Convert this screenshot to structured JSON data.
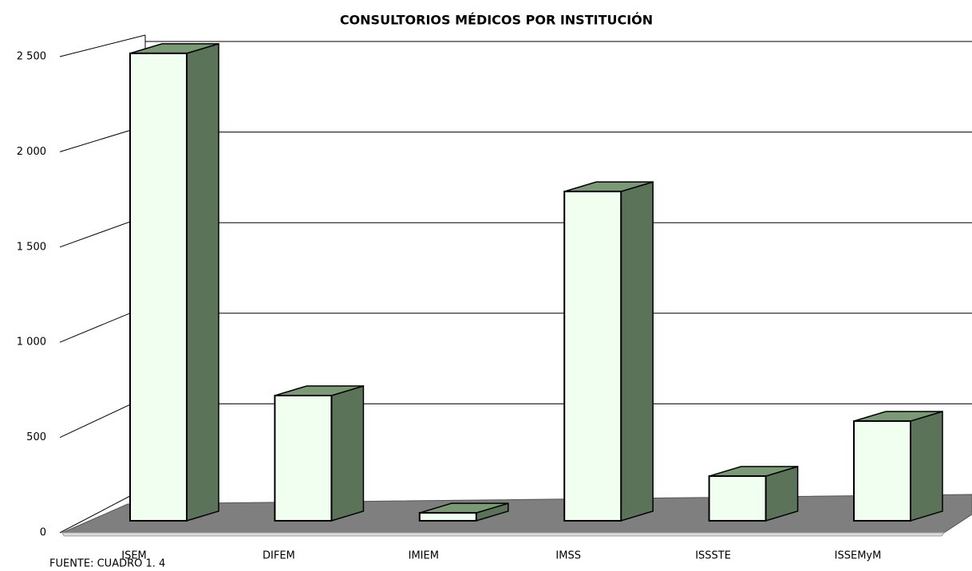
{
  "chart_data": {
    "type": "bar3d",
    "title": "CONSULTORIOS MÉDICOS POR INSTITUCIÓN",
    "note": "FUENTE: CUADRO 1. 4",
    "categories": [
      "ISEM",
      "DIFEM",
      "IMIEM",
      "IMSS",
      "ISSSTE",
      "ISSEMyM"
    ],
    "values": [
      2490,
      667,
      42,
      1754,
      238,
      531
    ],
    "color": "#f0fff0",
    "side_color": "#5b7359",
    "top_color": "#7a9a75",
    "ylim": [
      0,
      2500
    ],
    "yticks": [
      0,
      500,
      {
        "value": 1000,
        "label": "1 000"
      },
      {
        "value": 1500,
        "label": "1 500"
      },
      {
        "value": 2000,
        "label": "2 000"
      },
      {
        "value": 2500,
        "label": "2 500"
      }
    ],
    "grid": true
  }
}
